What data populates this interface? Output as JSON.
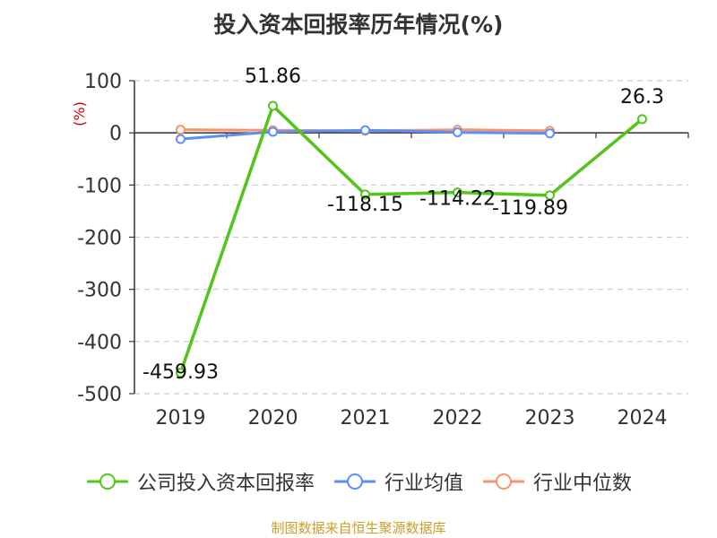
{
  "title": "投入资本回报率历年情况(%)",
  "source": "制图数据来自恒生聚源数据库",
  "chart_data": {
    "type": "line",
    "title": "投入资本回报率历年情况(%)",
    "ylabel": "(%)",
    "xlabel": "",
    "categories": [
      "2019",
      "2020",
      "2021",
      "2022",
      "2023",
      "2024"
    ],
    "ylim": [
      -500,
      100
    ],
    "yticks": [
      100,
      0,
      -100,
      -200,
      -300,
      -400,
      -500
    ],
    "grid": true,
    "legend_position": "bottom",
    "series": [
      {
        "name": "公司投入资本回报率",
        "color": "#52c41a",
        "values": [
          -459.93,
          51.86,
          -118.15,
          -114.22,
          -119.89,
          26.3
        ],
        "data_labels": [
          "-459.93",
          "51.86",
          "-118.15",
          "-114.22",
          "-119.89",
          "26.3"
        ]
      },
      {
        "name": "行业均值",
        "color": "#5b8ff9",
        "values": [
          -12,
          2,
          5,
          1,
          -1,
          null
        ]
      },
      {
        "name": "行业中位数",
        "color": "#f6946b",
        "values": [
          6,
          5,
          4,
          6,
          4,
          null
        ]
      }
    ]
  }
}
